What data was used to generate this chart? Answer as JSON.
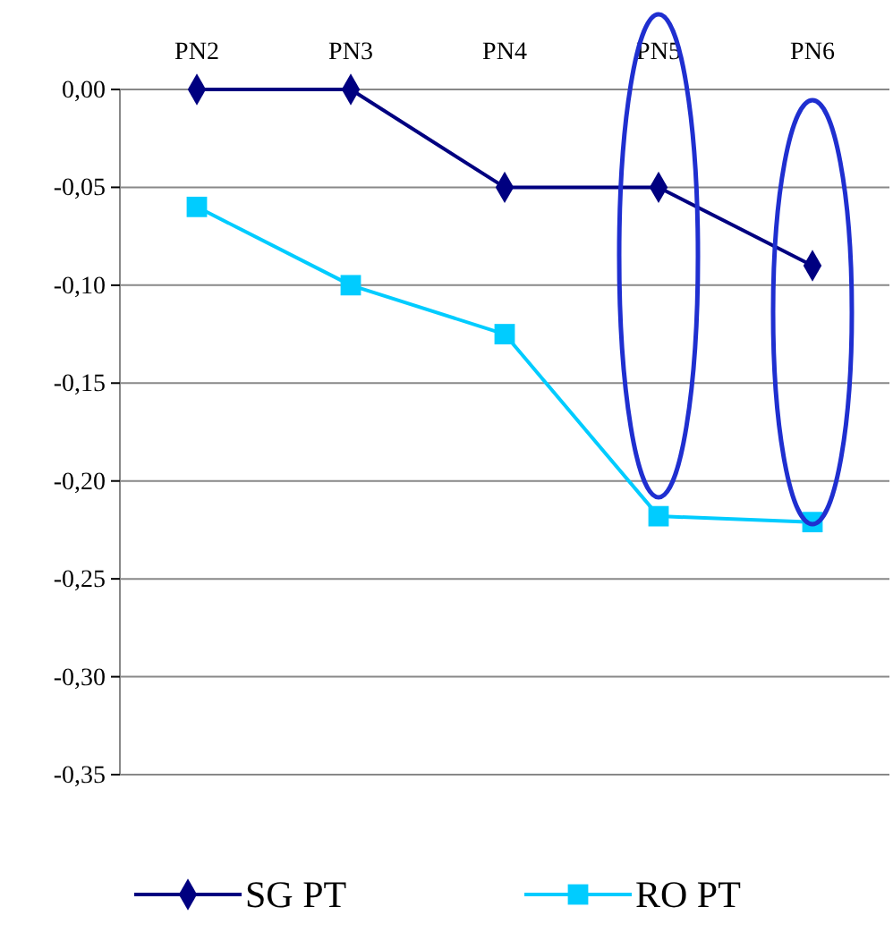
{
  "chart_data": {
    "type": "line",
    "categories": [
      "PN2",
      "PN3",
      "PN4",
      "PN5",
      "PN6"
    ],
    "series": [
      {
        "name": "SG PT",
        "color": "#000080",
        "marker": "diamond",
        "values": [
          0,
          0,
          -0.05,
          -0.05,
          -0.09
        ]
      },
      {
        "name": "RO PT",
        "color": "#00ccff",
        "marker": "square",
        "values": [
          -0.06,
          -0.1,
          -0.125,
          -0.218,
          -0.221
        ]
      }
    ],
    "ylim": [
      -0.35,
      0
    ],
    "yticks": [
      {
        "value": 0,
        "label": "0,00"
      },
      {
        "value": -0.05,
        "label": "-0,05"
      },
      {
        "value": -0.1,
        "label": "-0,10"
      },
      {
        "value": -0.15,
        "label": "-0,15"
      },
      {
        "value": -0.2,
        "label": "-0,20"
      },
      {
        "value": -0.25,
        "label": "-0,25"
      },
      {
        "value": -0.3,
        "label": "-0,30"
      },
      {
        "value": -0.35,
        "label": "-0,35"
      }
    ],
    "grid": "y",
    "legend": "bottom"
  }
}
